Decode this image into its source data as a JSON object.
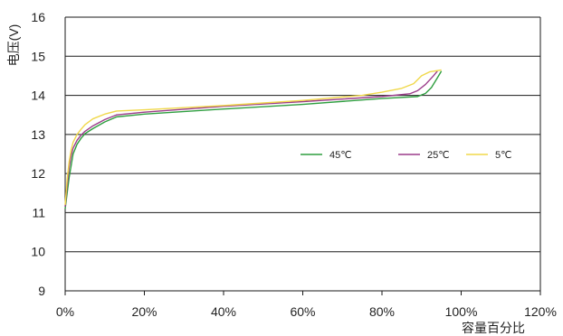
{
  "chart_data": {
    "type": "line",
    "title": "",
    "xlabel": "容量百分比",
    "ylabel": "电压(V)",
    "xlim": [
      0,
      120
    ],
    "ylim": [
      9,
      16
    ],
    "xticks": [
      0,
      20,
      40,
      60,
      80,
      100,
      120
    ],
    "xtick_labels": [
      "0%",
      "20%",
      "40%",
      "60%",
      "80%",
      "100%",
      "120%"
    ],
    "yticks": [
      9,
      10,
      11,
      12,
      13,
      14,
      15,
      16
    ],
    "ytick_labels": [
      "9",
      "10",
      "11",
      "12",
      "13",
      "14",
      "15",
      "16"
    ],
    "grid": "horizontal",
    "legend_position": "right, inside plot",
    "series": [
      {
        "name": "45℃",
        "color": "#2e9e3f",
        "points": [
          [
            0,
            11.1
          ],
          [
            0.5,
            11.5
          ],
          [
            1,
            11.9
          ],
          [
            1.5,
            12.2
          ],
          [
            2,
            12.5
          ],
          [
            3,
            12.75
          ],
          [
            4,
            12.9
          ],
          [
            5,
            13.02
          ],
          [
            7,
            13.15
          ],
          [
            10,
            13.32
          ],
          [
            13,
            13.45
          ],
          [
            20,
            13.52
          ],
          [
            40,
            13.65
          ],
          [
            60,
            13.77
          ],
          [
            80,
            13.92
          ],
          [
            89,
            13.97
          ],
          [
            91,
            14.05
          ],
          [
            92.5,
            14.2
          ],
          [
            94,
            14.45
          ],
          [
            95,
            14.62
          ]
        ]
      },
      {
        "name": "25℃",
        "color": "#9b3c8a",
        "points": [
          [
            0,
            11.15
          ],
          [
            0.5,
            11.7
          ],
          [
            1,
            12.15
          ],
          [
            1.5,
            12.45
          ],
          [
            2,
            12.65
          ],
          [
            3,
            12.85
          ],
          [
            4,
            12.98
          ],
          [
            5,
            13.08
          ],
          [
            7,
            13.22
          ],
          [
            10,
            13.38
          ],
          [
            13,
            13.5
          ],
          [
            20,
            13.57
          ],
          [
            40,
            13.72
          ],
          [
            60,
            13.84
          ],
          [
            80,
            13.97
          ],
          [
            87,
            14.04
          ],
          [
            89,
            14.12
          ],
          [
            91,
            14.28
          ],
          [
            93,
            14.5
          ],
          [
            94,
            14.62
          ]
        ]
      },
      {
        "name": "5℃",
        "color": "#f0d84a",
        "points": [
          [
            0,
            11.2
          ],
          [
            0.5,
            11.85
          ],
          [
            1,
            12.3
          ],
          [
            1.5,
            12.6
          ],
          [
            2,
            12.8
          ],
          [
            3,
            13.0
          ],
          [
            4,
            13.13
          ],
          [
            5,
            13.25
          ],
          [
            7,
            13.4
          ],
          [
            10,
            13.52
          ],
          [
            13,
            13.6
          ],
          [
            20,
            13.63
          ],
          [
            40,
            13.74
          ],
          [
            60,
            13.87
          ],
          [
            75,
            14.0
          ],
          [
            80,
            14.08
          ],
          [
            85,
            14.18
          ],
          [
            88,
            14.3
          ],
          [
            90,
            14.5
          ],
          [
            92,
            14.6
          ],
          [
            95,
            14.65
          ]
        ]
      }
    ]
  }
}
